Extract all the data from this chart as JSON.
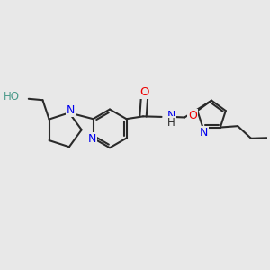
{
  "bg_color": "#e8e8e8",
  "bond_color": "#2a2a2a",
  "bond_width": 1.5,
  "atom_colors": {
    "N": "#0000ee",
    "O": "#ee0000",
    "HO": "#4a9a8a"
  },
  "font_size": 8.5,
  "fig_size": [
    3.0,
    3.0
  ],
  "dpi": 100
}
